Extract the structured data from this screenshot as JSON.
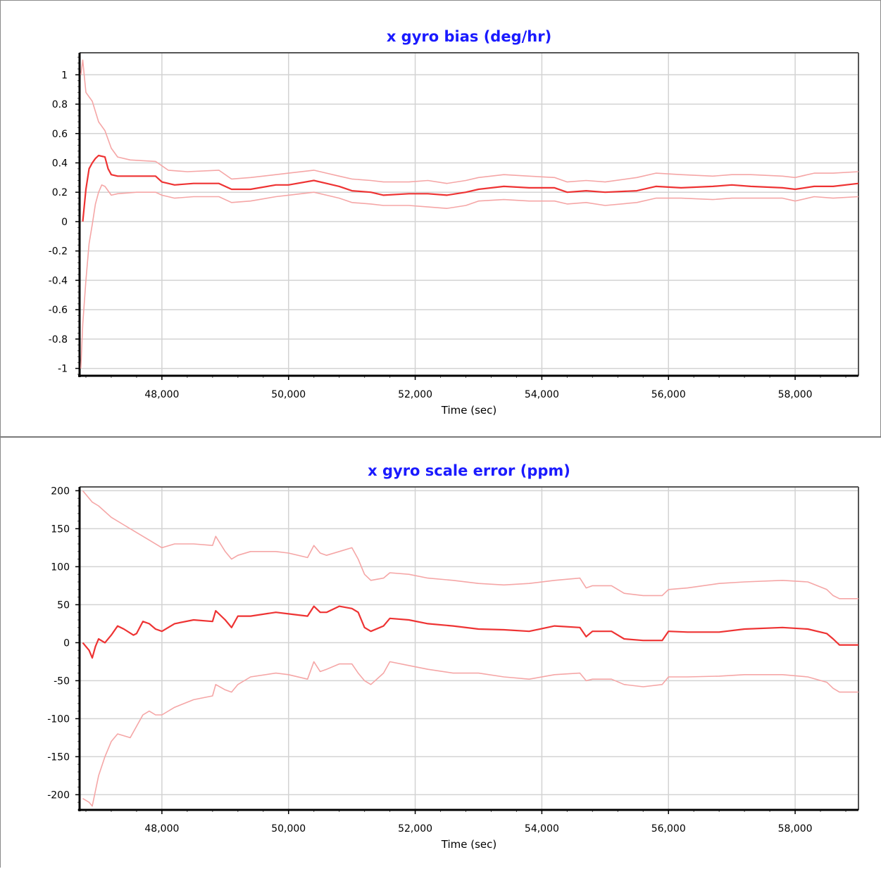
{
  "chart_data": [
    {
      "type": "line",
      "title": "x gyro bias (deg/hr)",
      "xlabel": "Time (sec)",
      "ylabel": "",
      "xlim": [
        46700,
        59000
      ],
      "ylim": [
        -1.05,
        1.15
      ],
      "xticks": [
        48000,
        50000,
        52000,
        54000,
        56000,
        58000
      ],
      "xtick_labels": [
        "48,000",
        "50,000",
        "52,000",
        "54,000",
        "56,000",
        "58,000"
      ],
      "yticks": [
        1,
        0.8,
        0.6,
        0.4,
        0.2,
        0,
        -0.2,
        -0.4,
        -0.6,
        -0.8,
        -1
      ],
      "ytick_labels": [
        "1",
        "0.8",
        "0.6",
        "0.4",
        "0.2",
        "0",
        "-0.2",
        "-0.4",
        "-0.6",
        "-0.8",
        "-1"
      ],
      "grid": true,
      "series": [
        {
          "role": "estimate",
          "color": "#ee3333",
          "x": [
            46750,
            46800,
            46850,
            46900,
            46950,
            47000,
            47100,
            47150,
            47200,
            47300,
            47600,
            47900,
            48000,
            48200,
            48500,
            48900,
            49100,
            49400,
            49800,
            50000,
            50400,
            50600,
            50800,
            51000,
            51300,
            51500,
            51900,
            52200,
            52500,
            52800,
            53000,
            53400,
            53800,
            54200,
            54400,
            54700,
            55000,
            55500,
            55800,
            56200,
            56700,
            57000,
            57300,
            57800,
            58000,
            58300,
            58600,
            59000
          ],
          "y": [
            0.0,
            0.22,
            0.36,
            0.4,
            0.43,
            0.45,
            0.44,
            0.36,
            0.32,
            0.31,
            0.31,
            0.31,
            0.27,
            0.25,
            0.26,
            0.26,
            0.22,
            0.22,
            0.25,
            0.25,
            0.28,
            0.26,
            0.24,
            0.21,
            0.2,
            0.18,
            0.19,
            0.19,
            0.18,
            0.2,
            0.22,
            0.24,
            0.23,
            0.23,
            0.2,
            0.21,
            0.2,
            0.21,
            0.24,
            0.23,
            0.24,
            0.25,
            0.24,
            0.23,
            0.22,
            0.24,
            0.24,
            0.26
          ]
        },
        {
          "role": "upper-bound",
          "color": "#f5a6a6",
          "x": [
            46720,
            46750,
            46800,
            46900,
            47000,
            47100,
            47200,
            47300,
            47500,
            47900,
            48100,
            48400,
            48900,
            49100,
            49400,
            49800,
            50000,
            50400,
            50600,
            50800,
            51000,
            51300,
            51500,
            51900,
            52200,
            52500,
            52800,
            53000,
            53400,
            53800,
            54200,
            54400,
            54700,
            55000,
            55500,
            55800,
            56200,
            56700,
            57000,
            57300,
            57800,
            58000,
            58300,
            58600,
            59000
          ],
          "y": [
            1.0,
            1.1,
            0.88,
            0.82,
            0.68,
            0.62,
            0.5,
            0.44,
            0.42,
            0.41,
            0.35,
            0.34,
            0.35,
            0.29,
            0.3,
            0.32,
            0.33,
            0.35,
            0.33,
            0.31,
            0.29,
            0.28,
            0.27,
            0.27,
            0.28,
            0.26,
            0.28,
            0.3,
            0.32,
            0.31,
            0.3,
            0.27,
            0.28,
            0.27,
            0.3,
            0.33,
            0.32,
            0.31,
            0.32,
            0.32,
            0.31,
            0.3,
            0.33,
            0.33,
            0.34
          ]
        },
        {
          "role": "lower-bound",
          "color": "#f5a6a6",
          "x": [
            46720,
            46750,
            46800,
            46850,
            46900,
            46950,
            47000,
            47050,
            47100,
            47200,
            47300,
            47600,
            47900,
            48000,
            48200,
            48500,
            48900,
            49100,
            49400,
            49800,
            50000,
            50400,
            50600,
            50800,
            51000,
            51300,
            51500,
            51900,
            52200,
            52500,
            52800,
            53000,
            53400,
            53800,
            54200,
            54400,
            54700,
            55000,
            55500,
            55800,
            56200,
            56700,
            57000,
            57300,
            57800,
            58000,
            58300,
            58600,
            59000
          ],
          "y": [
            -1.0,
            -0.7,
            -0.4,
            -0.15,
            -0.02,
            0.12,
            0.2,
            0.25,
            0.24,
            0.18,
            0.19,
            0.2,
            0.2,
            0.18,
            0.16,
            0.17,
            0.17,
            0.13,
            0.14,
            0.17,
            0.18,
            0.2,
            0.18,
            0.16,
            0.13,
            0.12,
            0.11,
            0.11,
            0.1,
            0.09,
            0.11,
            0.14,
            0.15,
            0.14,
            0.14,
            0.12,
            0.13,
            0.11,
            0.13,
            0.16,
            0.16,
            0.15,
            0.16,
            0.16,
            0.16,
            0.14,
            0.17,
            0.16,
            0.17
          ]
        }
      ]
    },
    {
      "type": "line",
      "title": "x gyro scale error (ppm)",
      "xlabel": "Time (sec)",
      "ylabel": "",
      "xlim": [
        46700,
        59000
      ],
      "ylim": [
        -220,
        205
      ],
      "xticks": [
        48000,
        50000,
        52000,
        54000,
        56000,
        58000
      ],
      "xtick_labels": [
        "48,000",
        "50,000",
        "52,000",
        "54,000",
        "56,000",
        "58,000"
      ],
      "yticks": [
        200,
        150,
        100,
        50,
        0,
        -50,
        -100,
        -150,
        -200
      ],
      "ytick_labels": [
        "200",
        "150",
        "100",
        "50",
        "0",
        "-50",
        "-100",
        "-150",
        "-200"
      ],
      "grid": true,
      "series": [
        {
          "role": "estimate",
          "color": "#ee3333",
          "x": [
            46750,
            46850,
            46900,
            46950,
            47000,
            47100,
            47200,
            47300,
            47400,
            47550,
            47600,
            47700,
            47800,
            47900,
            48000,
            48200,
            48500,
            48800,
            48850,
            49000,
            49100,
            49200,
            49400,
            49800,
            50000,
            50300,
            50400,
            50500,
            50600,
            50800,
            51000,
            51100,
            51200,
            51300,
            51500,
            51600,
            51900,
            52200,
            52600,
            53000,
            53400,
            53800,
            54200,
            54600,
            54700,
            54800,
            55100,
            55300,
            55600,
            55900,
            56000,
            56300,
            56800,
            57200,
            57800,
            58200,
            58500,
            58600,
            58700,
            59000
          ],
          "y": [
            0,
            -10,
            -20,
            -5,
            5,
            0,
            10,
            22,
            18,
            10,
            12,
            28,
            25,
            18,
            15,
            25,
            30,
            28,
            42,
            30,
            20,
            35,
            35,
            40,
            38,
            35,
            48,
            40,
            40,
            48,
            45,
            40,
            20,
            15,
            22,
            32,
            30,
            25,
            22,
            18,
            17,
            15,
            22,
            20,
            8,
            15,
            15,
            5,
            3,
            3,
            15,
            14,
            14,
            18,
            20,
            18,
            12,
            5,
            -3,
            -3
          ]
        },
        {
          "role": "upper-bound",
          "color": "#f5a6a6",
          "x": [
            46750,
            46900,
            47000,
            47200,
            47400,
            47600,
            47800,
            48000,
            48200,
            48500,
            48800,
            48850,
            49000,
            49100,
            49200,
            49400,
            49800,
            50000,
            50300,
            50400,
            50500,
            50600,
            50800,
            51000,
            51100,
            51200,
            51300,
            51500,
            51600,
            51900,
            52200,
            52600,
            53000,
            53400,
            53800,
            54200,
            54600,
            54700,
            54800,
            55100,
            55300,
            55600,
            55900,
            56000,
            56300,
            56800,
            57200,
            57800,
            58200,
            58500,
            58600,
            58700,
            59000
          ],
          "y": [
            200,
            185,
            180,
            165,
            155,
            145,
            135,
            125,
            130,
            130,
            128,
            140,
            120,
            110,
            115,
            120,
            120,
            118,
            112,
            128,
            118,
            115,
            120,
            125,
            110,
            90,
            82,
            85,
            92,
            90,
            85,
            82,
            78,
            76,
            78,
            82,
            85,
            72,
            75,
            75,
            65,
            62,
            62,
            70,
            72,
            78,
            80,
            82,
            80,
            70,
            62,
            58,
            58
          ]
        },
        {
          "role": "lower-bound",
          "color": "#f5a6a6",
          "x": [
            46750,
            46850,
            46900,
            46950,
            47000,
            47100,
            47200,
            47300,
            47500,
            47700,
            47800,
            47900,
            48000,
            48200,
            48500,
            48800,
            48850,
            49000,
            49100,
            49200,
            49400,
            49800,
            50000,
            50300,
            50400,
            50500,
            50600,
            50800,
            51000,
            51100,
            51200,
            51300,
            51500,
            51600,
            51900,
            52200,
            52600,
            53000,
            53400,
            53800,
            54200,
            54600,
            54700,
            54800,
            55100,
            55300,
            55600,
            55900,
            56000,
            56300,
            56800,
            57200,
            57800,
            58200,
            58500,
            58600,
            58700,
            59000
          ],
          "y": [
            -205,
            -210,
            -215,
            -195,
            -175,
            -150,
            -130,
            -120,
            -125,
            -95,
            -90,
            -95,
            -95,
            -85,
            -75,
            -70,
            -55,
            -62,
            -65,
            -55,
            -45,
            -40,
            -42,
            -48,
            -25,
            -38,
            -35,
            -28,
            -28,
            -40,
            -50,
            -55,
            -40,
            -25,
            -30,
            -35,
            -40,
            -40,
            -45,
            -48,
            -42,
            -40,
            -50,
            -48,
            -48,
            -55,
            -58,
            -55,
            -45,
            -45,
            -44,
            -42,
            -42,
            -45,
            -52,
            -60,
            -65,
            -65
          ]
        }
      ]
    }
  ]
}
